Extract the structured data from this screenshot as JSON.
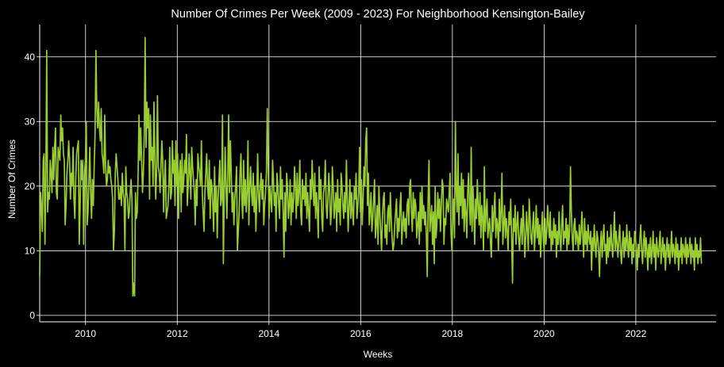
{
  "chart_data": {
    "type": "line",
    "title": "Number Of Crimes Per Week (2009 - 2023) For Neighborhood Kensington-Bailey",
    "xlabel": "Weeks",
    "ylabel": "Number Of Crimes",
    "xlim": [
      2009.0,
      2023.75
    ],
    "ylim": [
      -1,
      45
    ],
    "xticks": [
      2010,
      2012,
      2014,
      2016,
      2018,
      2020,
      2022
    ],
    "yticks": [
      0,
      10,
      20,
      30,
      40
    ],
    "grid": true,
    "colors": {
      "background": "#000000",
      "line": "#9acd32",
      "grid": "#ffffff",
      "text": "#ffffff"
    },
    "series": [
      {
        "x_start": 2009.0,
        "x_step_weeks": 1,
        "values": [
          6,
          19,
          17,
          13,
          24,
          25,
          11,
          22,
          41,
          16,
          19,
          18,
          24,
          22,
          19,
          26,
          21,
          26,
          29,
          19,
          18,
          26,
          25,
          24,
          31,
          27,
          29,
          25,
          24,
          14,
          17,
          22,
          24,
          27,
          24,
          18,
          22,
          20,
          26,
          18,
          15,
          21,
          25,
          26,
          27,
          11,
          17,
          24,
          21,
          24,
          11,
          22,
          24,
          30,
          14,
          16,
          21,
          26,
          19,
          15,
          21,
          17,
          23,
          28,
          41,
          32,
          29,
          33,
          29,
          27,
          32,
          25,
          24,
          22,
          31,
          23,
          20,
          21,
          24,
          22,
          23,
          21,
          20,
          18,
          10,
          13,
          22,
          25,
          23,
          21,
          18,
          18,
          20,
          17,
          22,
          19,
          18,
          10,
          23,
          19,
          18,
          15,
          16,
          19,
          21,
          18,
          3,
          5,
          3,
          19,
          15,
          16,
          22,
          31,
          24,
          29,
          24,
          19,
          22,
          28,
          43,
          26,
          33,
          29,
          32,
          18,
          31,
          24,
          26,
          20,
          33,
          25,
          18,
          22,
          34,
          23,
          22,
          19,
          23,
          27,
          24,
          16,
          21,
          24,
          15,
          16,
          17,
          20,
          26,
          18,
          19,
          27,
          22,
          24,
          17,
          27,
          20,
          25,
          15,
          22,
          24,
          16,
          25,
          19,
          21,
          24,
          22,
          28,
          17,
          20,
          25,
          22,
          18,
          26,
          23,
          21,
          19,
          14,
          21,
          17,
          25,
          23,
          22,
          20,
          27,
          19,
          16,
          13,
          19,
          22,
          25,
          20,
          18,
          24,
          15,
          21,
          20,
          17,
          13,
          23,
          16,
          20,
          12,
          18,
          21,
          24,
          17,
          18,
          31,
          8,
          19,
          26,
          20,
          15,
          22,
          31,
          19,
          27,
          22,
          16,
          19,
          14,
          18,
          20,
          23,
          10,
          13,
          16,
          22,
          25,
          18,
          15,
          24,
          17,
          21,
          16,
          19,
          27,
          14,
          20,
          23,
          19,
          17,
          22,
          16,
          20,
          13,
          18,
          25,
          19,
          16,
          20,
          22,
          18,
          21,
          14,
          17,
          19,
          22,
          32,
          23,
          15,
          20,
          18,
          16,
          24,
          21,
          17,
          19,
          13,
          22,
          20,
          17,
          15,
          23,
          18,
          21,
          16,
          9,
          19,
          13,
          22,
          20,
          15,
          17,
          21,
          14,
          19,
          16,
          18,
          23,
          20,
          15,
          22,
          17,
          19,
          24,
          16,
          14,
          21,
          18,
          20,
          17,
          22,
          15,
          19,
          16,
          13,
          21,
          18,
          24,
          20,
          17,
          22,
          15,
          19,
          16,
          12,
          23,
          18,
          21,
          15,
          13,
          19,
          20,
          24,
          17,
          15,
          18,
          22,
          19,
          14,
          16,
          23,
          20,
          15,
          17,
          19,
          13,
          21,
          16,
          18,
          14,
          22,
          20,
          17,
          15,
          19,
          16,
          24,
          18,
          13,
          17,
          21,
          15,
          19,
          16,
          14,
          20,
          18,
          22,
          15,
          17,
          19,
          26,
          16,
          21,
          14,
          18,
          23,
          20,
          27,
          29,
          17,
          22,
          14,
          16,
          19,
          13,
          15,
          18,
          21,
          12,
          14,
          17,
          11,
          20,
          16,
          13,
          10,
          15,
          18,
          19,
          12,
          14,
          11,
          16,
          17,
          13,
          19,
          15,
          12,
          10,
          11,
          14,
          16,
          18,
          12,
          15,
          13,
          17,
          19,
          11,
          14,
          16,
          13,
          15,
          12,
          17,
          18,
          14,
          20,
          21,
          16,
          13,
          19,
          15,
          18,
          17,
          12,
          14,
          16,
          11,
          19,
          13,
          20,
          15,
          17,
          14,
          16,
          12,
          6,
          18,
          24,
          13,
          15,
          17,
          11,
          16,
          8,
          20,
          12,
          14,
          19,
          15,
          18,
          13,
          17,
          21,
          20,
          11,
          15,
          14,
          18,
          17,
          16,
          19,
          22,
          13,
          10,
          15,
          18,
          12,
          30,
          19,
          16,
          25,
          14,
          20,
          17,
          22,
          15,
          21,
          13,
          18,
          16,
          12,
          19,
          22,
          17,
          14,
          26,
          13,
          20,
          16,
          11,
          18,
          15,
          21,
          17,
          14,
          19,
          12,
          17,
          15,
          10,
          23,
          13,
          16,
          18,
          12,
          14,
          15,
          11,
          9,
          17,
          13,
          16,
          19,
          12,
          15,
          14,
          10,
          18,
          13,
          16,
          22,
          11,
          14,
          17,
          12,
          15,
          13,
          10,
          16,
          14,
          18,
          12,
          5,
          15,
          13,
          17,
          11,
          14,
          16,
          12,
          10,
          13,
          15,
          11,
          17,
          14,
          9,
          12,
          16,
          13,
          10,
          18,
          15,
          12,
          11,
          14,
          16,
          10,
          13,
          17,
          12,
          15,
          11,
          14,
          9,
          13,
          16,
          12,
          10,
          15,
          11,
          13,
          17,
          14,
          12,
          16,
          10,
          13,
          11,
          15,
          12,
          14,
          9,
          13,
          11,
          16,
          12,
          10,
          14,
          17,
          11,
          13,
          12,
          15,
          10,
          14,
          11,
          13,
          23,
          16,
          12,
          10,
          14,
          15,
          11,
          13,
          12,
          10,
          14,
          11,
          13,
          16,
          12,
          9,
          15,
          11,
          13,
          10,
          14,
          12,
          11,
          13,
          7,
          12,
          10,
          14,
          11,
          9,
          13,
          12,
          10,
          6,
          11,
          13,
          9,
          12,
          14,
          10,
          11,
          8,
          13,
          9,
          12,
          10,
          14,
          11,
          9,
          12,
          16,
          10,
          13,
          11,
          9,
          12,
          14,
          10,
          8,
          11,
          13,
          9,
          12,
          10,
          14,
          11,
          9,
          13,
          10,
          12,
          8,
          11,
          9,
          13,
          12,
          10,
          7,
          11,
          9,
          12,
          14,
          10,
          8,
          11,
          13,
          9,
          12,
          10,
          7,
          11,
          9,
          12,
          8,
          10,
          13,
          9,
          11,
          7,
          12,
          10,
          9,
          11,
          13,
          8,
          10,
          12,
          9,
          11,
          7,
          10,
          12,
          9,
          11,
          8,
          10,
          13,
          9,
          11,
          10,
          8,
          12,
          9,
          11,
          7,
          10,
          9,
          12,
          8,
          11,
          10,
          9,
          12,
          8,
          11,
          9,
          10,
          12,
          8,
          11,
          9,
          10,
          7,
          12,
          9,
          11,
          8,
          10,
          9,
          12,
          8
        ]
      }
    ]
  }
}
